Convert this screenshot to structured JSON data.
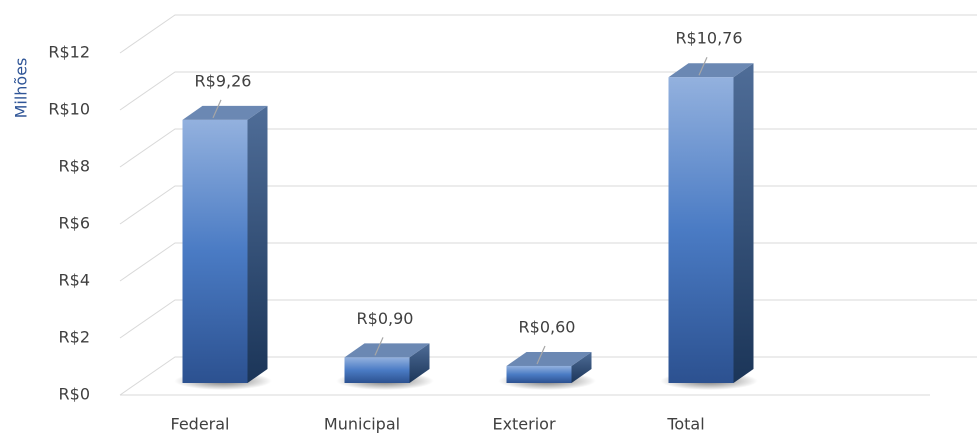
{
  "chart_data": {
    "type": "bar3d",
    "y_label": "Milhões",
    "categories": [
      "Federal",
      "Municipal",
      "Exterior",
      "Total"
    ],
    "values": [
      9.26,
      0.9,
      0.6,
      10.76
    ],
    "value_labels": [
      "R$9,26",
      "R$0,90",
      "R$0,60",
      "R$10,76"
    ],
    "color": "#4a76b8",
    "ylim": [
      0,
      12
    ],
    "yticks": [
      {
        "value": 0,
        "label": "R$0"
      },
      {
        "value": 2,
        "label": "R$2"
      },
      {
        "value": 4,
        "label": "R$4"
      },
      {
        "value": 6,
        "label": "R$6"
      },
      {
        "value": 8,
        "label": "R$8"
      },
      {
        "value": 10,
        "label": "R$10"
      },
      {
        "value": 12,
        "label": "R$12"
      }
    ],
    "grid": true
  }
}
